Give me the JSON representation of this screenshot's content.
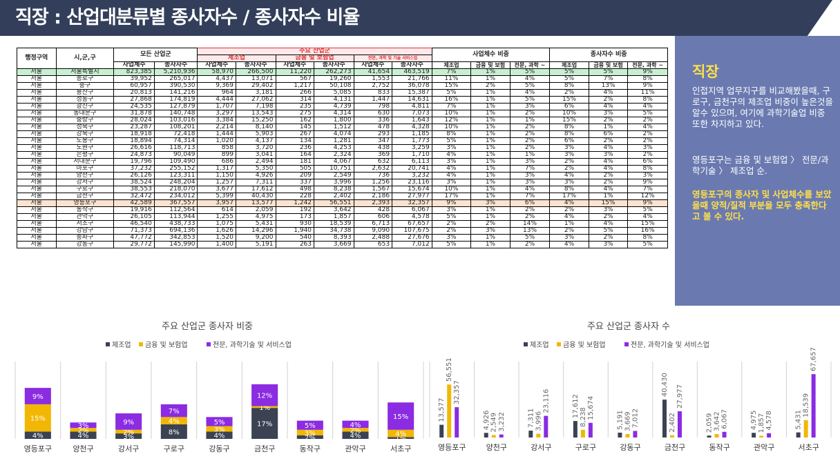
{
  "title": "직장 : 산업대분류별 종사자수 / 종사자수 비율",
  "table": {
    "headers": {
      "region": "행정구역",
      "district": "시,군,구",
      "all_industry": "모든 산업군",
      "major": "주요 산업군",
      "manufacturing": "제조업",
      "finance": "금융 및 보험업",
      "science": "전문, 과학 및 기술 서비스업",
      "biz_ratio": "사업체수 비중",
      "emp_ratio": "종사자수 비중",
      "biz_count": "사업체수",
      "emp_count": "종사자수",
      "r_manu": "제조업",
      "r_fin": "금융 및 보험",
      "r_sci": "전문, 과학 ~"
    },
    "rows": [
      [
        "서울",
        "서울특별시",
        "823,385",
        "5,210,936",
        "58,970",
        "266,500",
        "11,220",
        "262,273",
        "41,654",
        "463,519",
        "7%",
        "1%",
        "5%",
        "5%",
        "5%",
        "9%"
      ],
      [
        "서울",
        "종로구",
        "39,952",
        "265,017",
        "4,437",
        "13,071",
        "567",
        "19,260",
        "1,553",
        "21,766",
        "11%",
        "1%",
        "4%",
        "5%",
        "7%",
        "8%"
      ],
      [
        "서울",
        "중구",
        "60,957",
        "390,530",
        "9,369",
        "29,402",
        "1,217",
        "50,108",
        "2,752",
        "36,078",
        "15%",
        "2%",
        "5%",
        "8%",
        "13%",
        "9%"
      ],
      [
        "서울",
        "용산구",
        "20,813",
        "141,216",
        "964",
        "3,181",
        "266",
        "5,085",
        "833",
        "15,387",
        "5%",
        "1%",
        "4%",
        "2%",
        "4%",
        "11%"
      ],
      [
        "서울",
        "성동구",
        "27,868",
        "174,819",
        "4,444",
        "27,062",
        "314",
        "4,131",
        "1,447",
        "14,631",
        "16%",
        "1%",
        "5%",
        "15%",
        "2%",
        "8%"
      ],
      [
        "서울",
        "광진구",
        "24,535",
        "127,879",
        "1,707",
        "7,198",
        "235",
        "4,739",
        "798",
        "4,811",
        "7%",
        "1%",
        "3%",
        "6%",
        "4%",
        "4%"
      ],
      [
        "서울",
        "동대문구",
        "31,878",
        "140,748",
        "3,297",
        "13,543",
        "275",
        "4,314",
        "630",
        "7,073",
        "10%",
        "1%",
        "2%",
        "10%",
        "3%",
        "5%"
      ],
      [
        "서울",
        "중랑구",
        "28,024",
        "103,016",
        "3,384",
        "15,250",
        "162",
        "1,800",
        "336",
        "1,643",
        "12%",
        "1%",
        "1%",
        "15%",
        "2%",
        "2%"
      ],
      [
        "서울",
        "성북구",
        "23,287",
        "108,201",
        "2,214",
        "8,140",
        "145",
        "1,512",
        "478",
        "4,328",
        "10%",
        "1%",
        "2%",
        "8%",
        "1%",
        "4%"
      ],
      [
        "서울",
        "강북구",
        "18,918",
        "72,418",
        "1,444",
        "5,903",
        "267",
        "4,074",
        "293",
        "1,185",
        "8%",
        "1%",
        "2%",
        "8%",
        "6%",
        "2%"
      ],
      [
        "서울",
        "도봉구",
        "18,894",
        "74,314",
        "1,020",
        "4,137",
        "134",
        "1,281",
        "347",
        "1,773",
        "5%",
        "1%",
        "2%",
        "6%",
        "2%",
        "2%"
      ],
      [
        "서울",
        "노원구",
        "26,616",
        "118,713",
        "858",
        "3,720",
        "236",
        "4,253",
        "438",
        "3,259",
        "3%",
        "1%",
        "2%",
        "3%",
        "4%",
        "3%"
      ],
      [
        "서울",
        "은평구",
        "24,873",
        "90,049",
        "899",
        "3,041",
        "164",
        "2,324",
        "369",
        "1,710",
        "4%",
        "1%",
        "1%",
        "3%",
        "3%",
        "2%"
      ],
      [
        "서울",
        "서대문구",
        "19,796",
        "109,490",
        "686",
        "2,494",
        "181",
        "4,067",
        "632",
        "6,113",
        "3%",
        "1%",
        "3%",
        "2%",
        "4%",
        "6%"
      ],
      [
        "서울",
        "마포구",
        "37,232",
        "255,152",
        "1,317",
        "5,350",
        "505",
        "10,751",
        "2,632",
        "20,741",
        "4%",
        "1%",
        "7%",
        "2%",
        "4%",
        "8%"
      ],
      [
        "서울",
        "양천구",
        "26,126",
        "123,311",
        "1,150",
        "4,926",
        "209",
        "2,549",
        "736",
        "3,232",
        "4%",
        "1%",
        "3%",
        "4%",
        "2%",
        "3%"
      ],
      [
        "서울",
        "강서구",
        "38,524",
        "248,204",
        "1,257",
        "7,311",
        "337",
        "3,996",
        "1,256",
        "23,116",
        "3%",
        "1%",
        "3%",
        "3%",
        "2%",
        "9%"
      ],
      [
        "서울",
        "구로구",
        "38,553",
        "218,070",
        "3,677",
        "17,612",
        "498",
        "8,238",
        "1,567",
        "15,674",
        "10%",
        "1%",
        "4%",
        "8%",
        "4%",
        "7%"
      ],
      [
        "서울",
        "금천구",
        "32,472",
        "234,012",
        "5,399",
        "40,430",
        "228",
        "2,402",
        "2,186",
        "27,977",
        "17%",
        "1%",
        "7%",
        "17%",
        "1%",
        "12%"
      ],
      [
        "서울",
        "영등포구",
        "42,589",
        "367,557",
        "3,957",
        "13,577",
        "1,242",
        "56,551",
        "2,393",
        "32,357",
        "9%",
        "3%",
        "6%",
        "4%",
        "15%",
        "9%"
      ],
      [
        "서울",
        "동작구",
        "19,916",
        "112,564",
        "614",
        "2,059",
        "192",
        "3,642",
        "428",
        "6,067",
        "3%",
        "1%",
        "2%",
        "2%",
        "3%",
        "5%"
      ],
      [
        "서울",
        "관악구",
        "26,105",
        "113,944",
        "1,255",
        "4,975",
        "173",
        "1,857",
        "606",
        "4,578",
        "5%",
        "1%",
        "2%",
        "4%",
        "2%",
        "4%"
      ],
      [
        "서울",
        "서초구",
        "46,540",
        "438,733",
        "1,075",
        "5,431",
        "930",
        "18,539",
        "6,713",
        "67,657",
        "2%",
        "2%",
        "14%",
        "1%",
        "4%",
        "15%"
      ],
      [
        "서울",
        "강남구",
        "71,373",
        "694,136",
        "1,626",
        "14,296",
        "1,940",
        "34,738",
        "9,090",
        "107,675",
        "2%",
        "3%",
        "13%",
        "2%",
        "5%",
        "16%"
      ],
      [
        "서울",
        "송파구",
        "47,772",
        "342,853",
        "1,520",
        "9,200",
        "540",
        "8,393",
        "2,488",
        "27,676",
        "3%",
        "1%",
        "5%",
        "3%",
        "2%",
        "8%"
      ],
      [
        "서울",
        "강동구",
        "29,772",
        "145,990",
        "1,400",
        "5,191",
        "263",
        "3,669",
        "653",
        "7,012",
        "5%",
        "1%",
        "2%",
        "4%",
        "3%",
        "5%"
      ]
    ]
  },
  "panel": {
    "heading": "직장",
    "p1": "인접지역 업무지구를 비교해봤을때, 구로구, 금천구의 제조업 비중이 높은것을 알수 있으며, 여기에 과학기술업 비중 또한 차지하고 있다.",
    "p2": "영등포구는 금융 및 보험업 〉 전문/과학기술 〉 제조업 순.",
    "p3": "영등포구의 종사자 및 사업체수를 보았을때 양적/질적 부분을 모두 충족한다고 볼 수 있다."
  },
  "colors": {
    "manufacturing": "#3b4252",
    "finance": "#f2b705",
    "science": "#8b2be2"
  },
  "chart_data": [
    {
      "type": "bar",
      "stacked": true,
      "title": "주요 산업군 종사자 비중",
      "categories": [
        "영등포구",
        "양천구",
        "강서구",
        "구로구",
        "강동구",
        "금천구",
        "동작구",
        "관악구",
        "서초구"
      ],
      "series": [
        {
          "name": "제조업",
          "values": [
            4,
            4,
            3,
            8,
            4,
            17,
            2,
            4,
            1
          ]
        },
        {
          "name": "금융 및 보험업",
          "values": [
            15,
            2,
            2,
            4,
            3,
            1,
            3,
            2,
            4
          ]
        },
        {
          "name": "전문, 과학기술 및 서비스업",
          "values": [
            9,
            3,
            9,
            7,
            5,
            12,
            5,
            4,
            15
          ]
        }
      ],
      "labels": [
        "4%",
        "15%",
        "9%",
        "4%",
        "2%",
        "3%",
        "3%",
        "2%",
        "9%",
        "8%",
        "4%",
        "7%",
        "4%",
        "3%",
        "5%",
        "17%",
        "1%",
        "12%",
        "2%",
        "3%",
        "5%",
        "4%",
        "2%",
        "4%",
        "1%",
        "4%",
        "15%"
      ],
      "legend": "top"
    },
    {
      "type": "bar",
      "title": "주요 산업군 종사자 수",
      "categories": [
        "영등포구",
        "양천구",
        "강서구",
        "구로구",
        "강동구",
        "금천구",
        "동작구",
        "관악구",
        "서초구"
      ],
      "series": [
        {
          "name": "제조업",
          "values": [
            13577,
            4926,
            7311,
            17612,
            5191,
            40430,
            2059,
            4975,
            5431
          ]
        },
        {
          "name": "금융 및 보험업",
          "values": [
            56551,
            2549,
            3996,
            8238,
            3669,
            2402,
            3642,
            1857,
            18539
          ]
        },
        {
          "name": "전문, 과학기술 및 서비스업",
          "values": [
            32357,
            3232,
            23116,
            15674,
            7012,
            27977,
            6067,
            4578,
            67657
          ]
        }
      ],
      "value_labels": [
        [
          "13,577",
          "4,926",
          "7,311",
          "17,612",
          "5,191",
          "40,430",
          "2,059",
          "4,975",
          "5,431"
        ],
        [
          "56,551",
          "2,549",
          "3,996",
          "8,238",
          "3,669",
          "2,402",
          "3,642",
          "1,857",
          "18,539"
        ],
        [
          "32,357",
          "3,232",
          "23,116",
          "15,674",
          "7,012",
          "27,977",
          "6,067",
          "4,578",
          "67,657"
        ]
      ],
      "legend": "top"
    }
  ]
}
